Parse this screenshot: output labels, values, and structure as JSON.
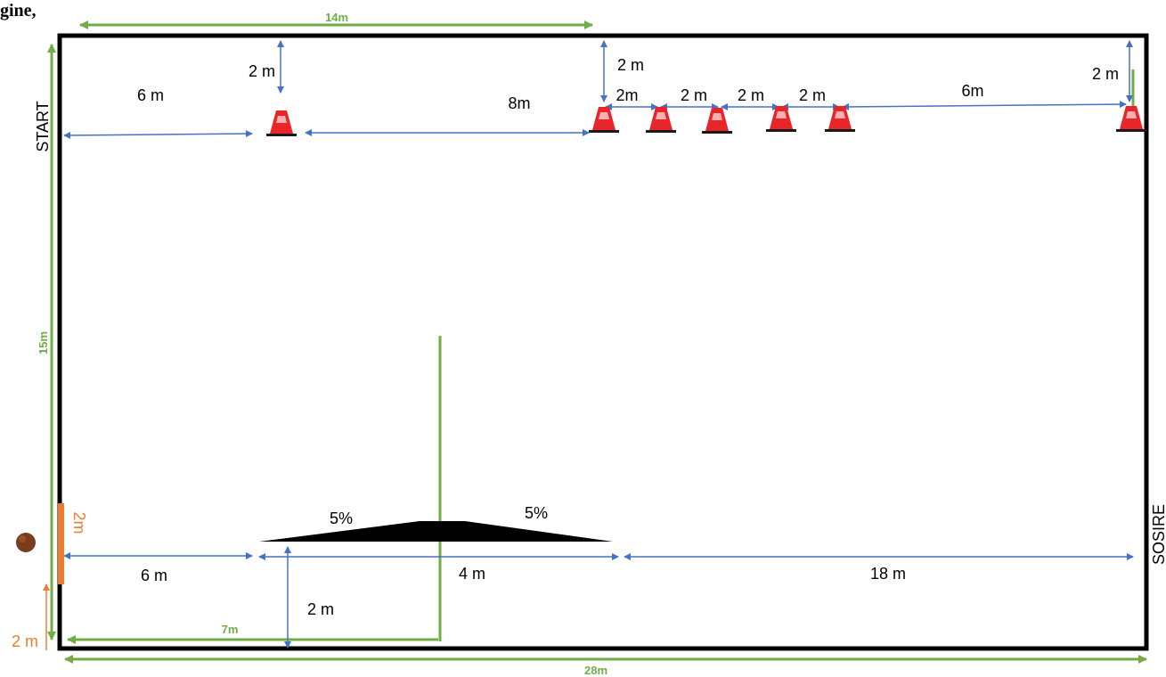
{
  "header_fragment": "gine,",
  "labels": {
    "start": "START",
    "finish": "SOSIRE",
    "width_total": "28m",
    "height_total": "15m",
    "top_half": "14m",
    "ramp_center_offset": "7m",
    "top_offset_left": "2 m",
    "top_offset_mid": "2 m",
    "top_offset_right": "2 m",
    "seg_6m_top": "6 m",
    "seg_8m": "8m",
    "gap_1": "2m",
    "gap_2": "2 m",
    "gap_3": "2 m",
    "gap_4": "2 m",
    "seg_6m_right": "6m",
    "ramp_slope_left": "5%",
    "ramp_slope_right": "5%",
    "seg_6m_bottom": "6 m",
    "ramp_length": "4 m",
    "seg_18m": "18 m",
    "ramp_to_wall": "2 m",
    "gate_width": "2m",
    "gate_offset": "2 m"
  },
  "colors": {
    "border": "#000000",
    "dimension": "#4472c4",
    "overall_dimension": "#70ad47",
    "gate": "#ed7d31",
    "cone": "#e8262a",
    "ball": "#7a3b1e"
  },
  "icons": {
    "cone": "traffic-cone-icon",
    "ball": "basketball-icon"
  }
}
